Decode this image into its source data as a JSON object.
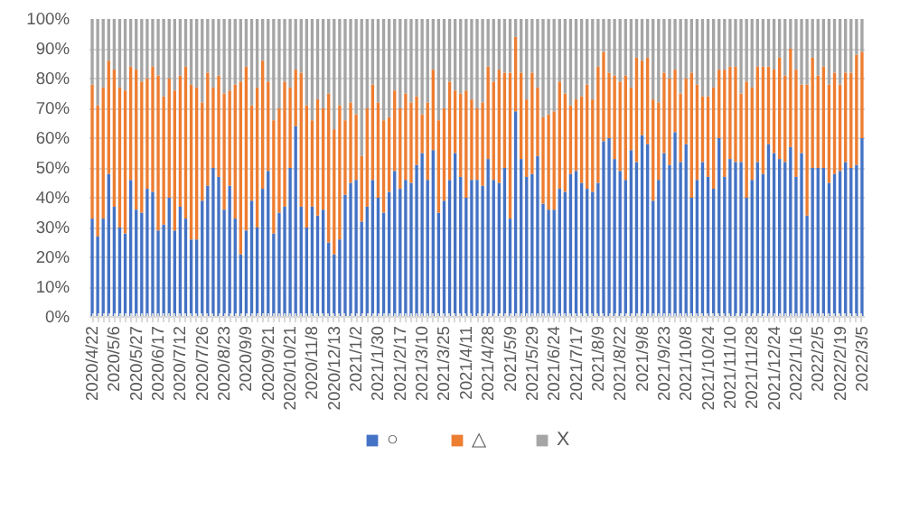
{
  "chart_data": {
    "type": "bar",
    "stacked": true,
    "grid": "y",
    "legend": "bottom",
    "categories": [
      "2020/4/22",
      null,
      null,
      null,
      "2020/5/6",
      null,
      null,
      null,
      "2020/5/27",
      null,
      null,
      null,
      "2020/6/17",
      null,
      null,
      null,
      "2020/7/12",
      null,
      null,
      null,
      "2020/7/26",
      null,
      null,
      null,
      "2020/8/23",
      null,
      null,
      null,
      "2020/9/9",
      null,
      null,
      null,
      "2020/9/21",
      null,
      null,
      null,
      "2020/10/21",
      null,
      null,
      null,
      "2020/11/8",
      null,
      null,
      null,
      "2020/12/13",
      null,
      null,
      null,
      "2021/1/2",
      null,
      null,
      null,
      "2021/1/30",
      null,
      null,
      null,
      "2021/2/17",
      null,
      null,
      null,
      "2021/3/10",
      null,
      null,
      null,
      "2021/3/25",
      null,
      null,
      null,
      "2021/4/11",
      null,
      null,
      null,
      "2021/4/28",
      null,
      null,
      null,
      "2021/5/9",
      null,
      null,
      null,
      "2021/5/29",
      null,
      null,
      null,
      "2021/6/24",
      null,
      null,
      null,
      "2021/7/17",
      null,
      null,
      null,
      "2021/8/9",
      null,
      null,
      null,
      "2021/8/22",
      null,
      null,
      null,
      "2021/9/8",
      null,
      null,
      null,
      "2021/9/23",
      null,
      null,
      null,
      "2021/10/8",
      null,
      null,
      null,
      "2021/10/24",
      null,
      null,
      null,
      "2021/11/10",
      null,
      null,
      null,
      "2021/11/28",
      null,
      null,
      null,
      "2021/12/24",
      null,
      null,
      null,
      "2022/1/16",
      null,
      null,
      null,
      "2022/2/5",
      null,
      null,
      null,
      "2022/2/19",
      null,
      null,
      null,
      "2022/3/5"
    ],
    "ylim": [
      0,
      100
    ],
    "yticks": [
      {
        "value": 0,
        "label": "0%"
      },
      {
        "value": 10,
        "label": "10%"
      },
      {
        "value": 20,
        "label": "20%"
      },
      {
        "value": 30,
        "label": "30%"
      },
      {
        "value": 40,
        "label": "40%"
      },
      {
        "value": 50,
        "label": "50%"
      },
      {
        "value": 60,
        "label": "60%"
      },
      {
        "value": 70,
        "label": "70%"
      },
      {
        "value": 80,
        "label": "80%"
      },
      {
        "value": 90,
        "label": "90%"
      },
      {
        "value": 100,
        "label": "100%"
      }
    ],
    "series": [
      {
        "name": "○",
        "color": "#4472c4",
        "values": [
          33,
          27,
          33,
          48,
          37,
          30,
          28,
          46,
          36,
          35,
          43,
          42,
          29,
          31,
          40,
          29,
          37,
          33,
          26,
          26,
          39,
          44,
          50,
          47,
          36,
          44,
          33,
          21,
          29,
          39,
          30,
          43,
          49,
          28,
          35,
          37,
          50,
          64,
          37,
          30,
          37,
          34,
          36,
          25,
          21,
          26,
          41,
          45,
          46,
          32,
          37,
          46,
          40,
          35,
          42,
          49,
          43,
          46,
          45,
          51,
          55,
          46,
          56,
          35,
          39,
          46,
          55,
          47,
          40,
          46,
          46,
          44,
          53,
          46,
          45,
          50,
          33,
          69,
          53,
          47,
          48,
          54,
          38,
          36,
          36,
          43,
          42,
          48,
          49,
          45,
          43,
          42,
          45,
          59,
          60,
          53,
          49,
          46,
          56,
          52,
          61,
          58,
          39,
          46,
          55,
          51,
          62,
          52,
          58,
          40,
          46,
          52,
          47,
          43,
          60,
          47,
          53,
          52,
          52,
          40,
          46,
          52,
          48,
          58,
          55,
          53,
          52,
          57,
          47,
          55,
          34,
          50,
          50,
          50,
          45,
          48,
          49,
          52,
          50,
          51,
          60
        ]
      },
      {
        "name": "△",
        "color": "#ed7d31",
        "values": [
          45,
          44,
          44,
          38,
          46,
          47,
          48,
          38,
          47,
          44,
          37,
          42,
          52,
          43,
          40,
          47,
          44,
          51,
          52,
          51,
          33,
          38,
          27,
          34,
          39,
          32,
          45,
          58,
          55,
          32,
          47,
          43,
          30,
          38,
          35,
          42,
          27,
          19,
          45,
          41,
          29,
          39,
          34,
          50,
          42,
          45,
          25,
          27,
          22,
          22,
          33,
          32,
          32,
          31,
          25,
          27,
          27,
          29,
          27,
          23,
          13,
          26,
          27,
          31,
          31,
          33,
          21,
          28,
          36,
          27,
          24,
          28,
          31,
          33,
          38,
          32,
          49,
          25,
          29,
          26,
          34,
          23,
          29,
          32,
          33,
          36,
          33,
          23,
          24,
          29,
          35,
          31,
          39,
          30,
          22,
          28,
          30,
          35,
          21,
          35,
          25,
          29,
          34,
          26,
          27,
          29,
          21,
          23,
          22,
          42,
          32,
          22,
          27,
          34,
          23,
          36,
          31,
          32,
          23,
          39,
          31,
          32,
          36,
          26,
          28,
          34,
          29,
          33,
          36,
          23,
          44,
          37,
          31,
          34,
          33,
          34,
          29,
          30,
          32,
          37,
          29
        ]
      },
      {
        "name": "X",
        "color": "#a5a5a5",
        "values": [
          22,
          29,
          23,
          14,
          17,
          23,
          24,
          16,
          17,
          21,
          20,
          16,
          19,
          26,
          20,
          24,
          19,
          16,
          22,
          23,
          28,
          18,
          23,
          19,
          25,
          24,
          22,
          21,
          16,
          29,
          23,
          14,
          21,
          34,
          30,
          21,
          23,
          17,
          18,
          29,
          34,
          27,
          30,
          25,
          37,
          29,
          34,
          28,
          32,
          46,
          30,
          22,
          28,
          34,
          33,
          24,
          30,
          25,
          28,
          26,
          32,
          28,
          17,
          34,
          30,
          21,
          24,
          25,
          24,
          27,
          30,
          28,
          16,
          21,
          17,
          18,
          18,
          6,
          18,
          27,
          18,
          23,
          33,
          32,
          31,
          21,
          25,
          29,
          27,
          26,
          22,
          27,
          16,
          11,
          18,
          19,
          21,
          19,
          23,
          13,
          14,
          13,
          27,
          28,
          18,
          20,
          17,
          25,
          20,
          18,
          22,
          26,
          26,
          23,
          17,
          17,
          16,
          16,
          25,
          21,
          23,
          16,
          16,
          16,
          17,
          13,
          19,
          10,
          17,
          22,
          22,
          13,
          19,
          16,
          22,
          18,
          22,
          18,
          18,
          12,
          11
        ]
      }
    ]
  }
}
